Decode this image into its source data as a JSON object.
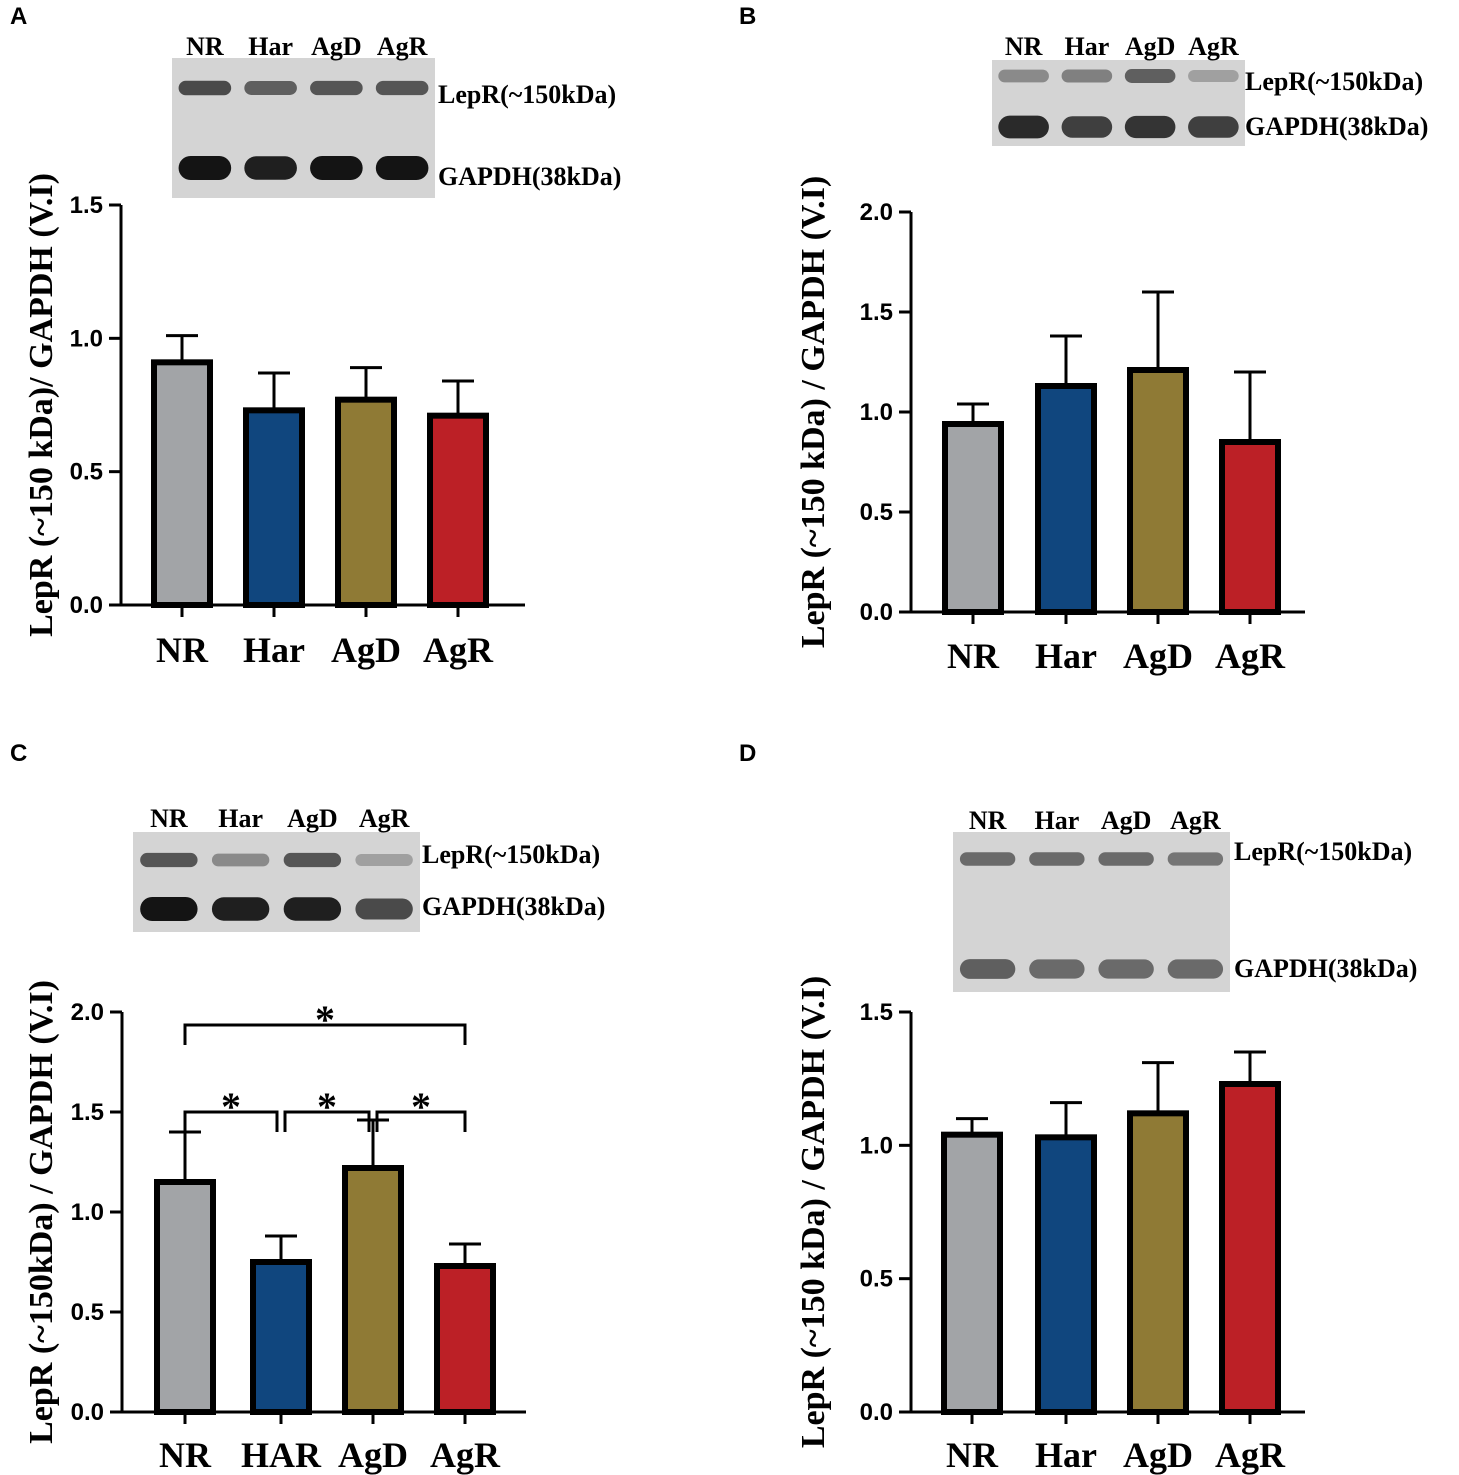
{
  "panels": [
    {
      "letter": "A",
      "chart_data": {
        "type": "bar",
        "categories": [
          "NR",
          "Har",
          "AgD",
          "AgR"
        ],
        "values": [
          0.91,
          0.73,
          0.77,
          0.71
        ],
        "errors": [
          0.1,
          0.14,
          0.12,
          0.13
        ],
        "colors": [
          "#a2a4a7",
          "#10467e",
          "#8f7a35",
          "#bc2026"
        ],
        "ylabel": "LepR (~150 kDa)/ GAPDH (V.I)",
        "ylim": [
          0,
          1.5
        ],
        "yticks": [
          "0.0",
          "0.5",
          "1.0",
          "1.5"
        ],
        "significance": []
      },
      "blot": {
        "lanes": [
          "NR",
          "Har",
          "AgD",
          "AgR"
        ],
        "labels": [
          "LepR(~150kDa)",
          "GAPDH(38kDa)"
        ],
        "band_intensity": [
          [
            0.75,
            0.65,
            0.7,
            0.7
          ],
          [
            1.0,
            0.95,
            1.0,
            1.0
          ]
        ]
      }
    },
    {
      "letter": "B",
      "chart_data": {
        "type": "bar",
        "categories": [
          "NR",
          "Har",
          "AgD",
          "AgR"
        ],
        "values": [
          0.94,
          1.13,
          1.21,
          0.85
        ],
        "errors": [
          0.1,
          0.25,
          0.39,
          0.35
        ],
        "colors": [
          "#a2a4a7",
          "#10467e",
          "#8f7a35",
          "#bc2026"
        ],
        "ylabel": "LepR (~150 kDa) / GAPDH (V.I)",
        "ylim": [
          0,
          2.0
        ],
        "yticks": [
          "0.0",
          "0.5",
          "1.0",
          "1.5",
          "2.0"
        ],
        "significance": []
      },
      "blot": {
        "lanes": [
          "NR",
          "Har",
          "AgD",
          "AgR"
        ],
        "labels": [
          "LepR(~150kDa)",
          "GAPDH(38kDa)"
        ],
        "band_intensity": [
          [
            0.45,
            0.5,
            0.65,
            0.35
          ],
          [
            0.9,
            0.8,
            0.85,
            0.8
          ]
        ]
      }
    },
    {
      "letter": "C",
      "chart_data": {
        "type": "bar",
        "categories": [
          "NR",
          "HAR",
          "AgD",
          "AgR"
        ],
        "values": [
          1.15,
          0.75,
          1.22,
          0.73
        ],
        "errors": [
          0.25,
          0.13,
          0.24,
          0.11
        ],
        "colors": [
          "#a2a4a7",
          "#10467e",
          "#8f7a35",
          "#bc2026"
        ],
        "ylabel": "LepR (~150kDa) / GAPDH (V.I)",
        "ylim": [
          0,
          2.0
        ],
        "yticks": [
          "0.0",
          "0.5",
          "1.0",
          "1.5",
          "2.0"
        ],
        "significance": [
          {
            "from": 0,
            "to": 3,
            "label": "*"
          },
          {
            "from": 0,
            "to": 1,
            "label": "*"
          },
          {
            "from": 1,
            "to": 2,
            "label": "*"
          },
          {
            "from": 2,
            "to": 3,
            "label": "*"
          }
        ]
      },
      "blot": {
        "lanes": [
          "NR",
          "Har",
          "AgD",
          "AgR"
        ],
        "labels": [
          "LepR(~150kDa)",
          "GAPDH(38kDa)"
        ],
        "band_intensity": [
          [
            0.7,
            0.45,
            0.7,
            0.35
          ],
          [
            1.0,
            0.95,
            0.95,
            0.75
          ]
        ]
      }
    },
    {
      "letter": "D",
      "chart_data": {
        "type": "bar",
        "categories": [
          "NR",
          "Har",
          "AgD",
          "AgR"
        ],
        "values": [
          1.04,
          1.03,
          1.12,
          1.23
        ],
        "errors": [
          0.06,
          0.13,
          0.19,
          0.12
        ],
        "colors": [
          "#a2a4a7",
          "#10467e",
          "#8f7a35",
          "#bc2026"
        ],
        "ylabel": "LepR (~150 kDa) / GAPDH (V.I)",
        "ylim": [
          0,
          1.5
        ],
        "yticks": [
          "0.0",
          "0.5",
          "1.0",
          "1.5"
        ],
        "significance": []
      },
      "blot": {
        "lanes": [
          "NR",
          "Har",
          "AgD",
          "AgR"
        ],
        "labels": [
          "LepR(~150kDa)",
          "GAPDH(38kDa)"
        ],
        "band_intensity": [
          [
            0.6,
            0.6,
            0.6,
            0.55
          ],
          [
            0.65,
            0.6,
            0.6,
            0.6
          ]
        ]
      }
    }
  ]
}
